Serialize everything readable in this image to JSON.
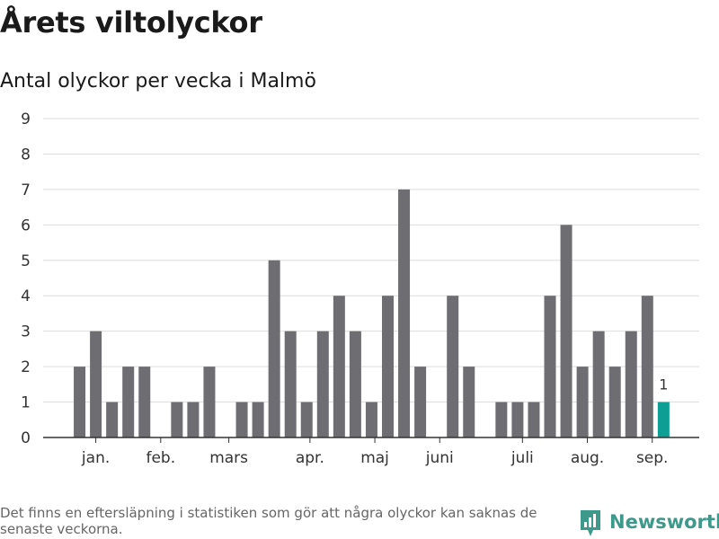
{
  "title": "Årets viltolyckor",
  "subtitle": "Antal olyckor per vecka i Malmö",
  "footnote": "Det finns en eftersläpning i statistiken som gör att några olyckor kan saknas de senaste veckorna.",
  "brand": {
    "name": "Newsworthy",
    "color": "#3d9a8b"
  },
  "chart_data": {
    "type": "bar",
    "title": "",
    "xlabel": "",
    "ylabel": "",
    "ylim": [
      0,
      9
    ],
    "yticks": [
      0,
      1,
      2,
      3,
      4,
      5,
      6,
      7,
      8,
      9
    ],
    "grid": true,
    "bar_color": "#6e6d72",
    "highlight_color": "#0d9e94",
    "x": [
      1,
      2,
      3,
      4,
      5,
      6,
      7,
      8,
      9,
      10,
      11,
      12,
      13,
      14,
      15,
      16,
      17,
      18,
      19,
      20,
      21,
      22,
      23,
      24,
      25,
      26,
      27,
      28,
      29,
      30,
      31,
      32,
      33,
      34,
      35,
      36,
      37,
      38,
      39
    ],
    "values": [
      0,
      2,
      3,
      1,
      2,
      2,
      0,
      1,
      1,
      2,
      0,
      1,
      1,
      5,
      3,
      1,
      3,
      4,
      3,
      1,
      4,
      7,
      2,
      0,
      4,
      2,
      0,
      1,
      1,
      1,
      4,
      6,
      2,
      3,
      2,
      3,
      4,
      1,
      0
    ],
    "highlight_index": 37,
    "highlight_label": "1",
    "month_ticks": [
      {
        "label": "jan.",
        "x": 3.0
      },
      {
        "label": "feb.",
        "x": 7.0
      },
      {
        "label": "mars",
        "x": 11.2
      },
      {
        "label": "apr.",
        "x": 16.2
      },
      {
        "label": "maj",
        "x": 20.2
      },
      {
        "label": "juni",
        "x": 24.2
      },
      {
        "label": "juli",
        "x": 29.3
      },
      {
        "label": "aug.",
        "x": 33.3
      },
      {
        "label": "sep.",
        "x": 37.3
      }
    ]
  }
}
